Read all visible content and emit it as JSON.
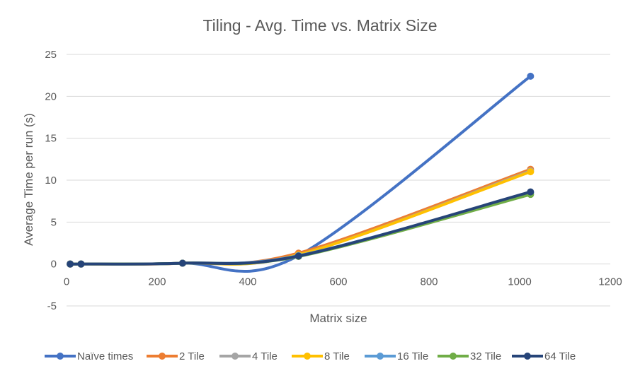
{
  "chart_data": {
    "type": "line",
    "title": "Tiling - Avg. Time vs. Matrix Size",
    "xlabel": "Matrix size",
    "ylabel": "Average Time per run (s)",
    "xlim": [
      0,
      1200
    ],
    "ylim": [
      -5,
      25
    ],
    "x_ticks": [
      "0",
      "200",
      "400",
      "600",
      "800",
      "1000",
      "1200"
    ],
    "y_ticks": [
      "-5",
      "0",
      "5",
      "10",
      "15",
      "20",
      "25"
    ],
    "grid": true,
    "legend_position": "bottom",
    "series": [
      {
        "name": "Naïve times",
        "color": "#4472c4",
        "x": [
          8,
          32,
          256,
          512,
          1024
        ],
        "y": [
          0.0,
          0.0,
          0.1,
          1.0,
          22.4
        ]
      },
      {
        "name": "2 Tile",
        "color": "#ed7d31",
        "x": [
          8,
          32,
          256,
          512,
          1024
        ],
        "y": [
          0.0,
          0.0,
          0.1,
          1.3,
          11.3
        ]
      },
      {
        "name": "4 Tile",
        "color": "#a5a5a5",
        "x": [
          8,
          32,
          256,
          512,
          1024
        ],
        "y": [
          0.0,
          0.0,
          0.1,
          1.1,
          11.1
        ]
      },
      {
        "name": "8 Tile",
        "color": "#ffc000",
        "x": [
          8,
          32,
          256,
          512,
          1024
        ],
        "y": [
          0.0,
          0.0,
          0.1,
          1.1,
          11.0
        ]
      },
      {
        "name": "16 Tile",
        "color": "#5b9bd5",
        "x": [
          8,
          32,
          256,
          512,
          1024
        ],
        "y": [
          0.0,
          0.0,
          0.1,
          1.0,
          8.5
        ]
      },
      {
        "name": "32 Tile",
        "color": "#70ad47",
        "x": [
          8,
          32,
          256,
          512,
          1024
        ],
        "y": [
          0.0,
          0.0,
          0.1,
          0.9,
          8.3
        ]
      },
      {
        "name": "64 Tile",
        "color": "#264478",
        "x": [
          8,
          32,
          256,
          512,
          1024
        ],
        "y": [
          0.0,
          0.0,
          0.1,
          0.95,
          8.6
        ]
      }
    ]
  }
}
